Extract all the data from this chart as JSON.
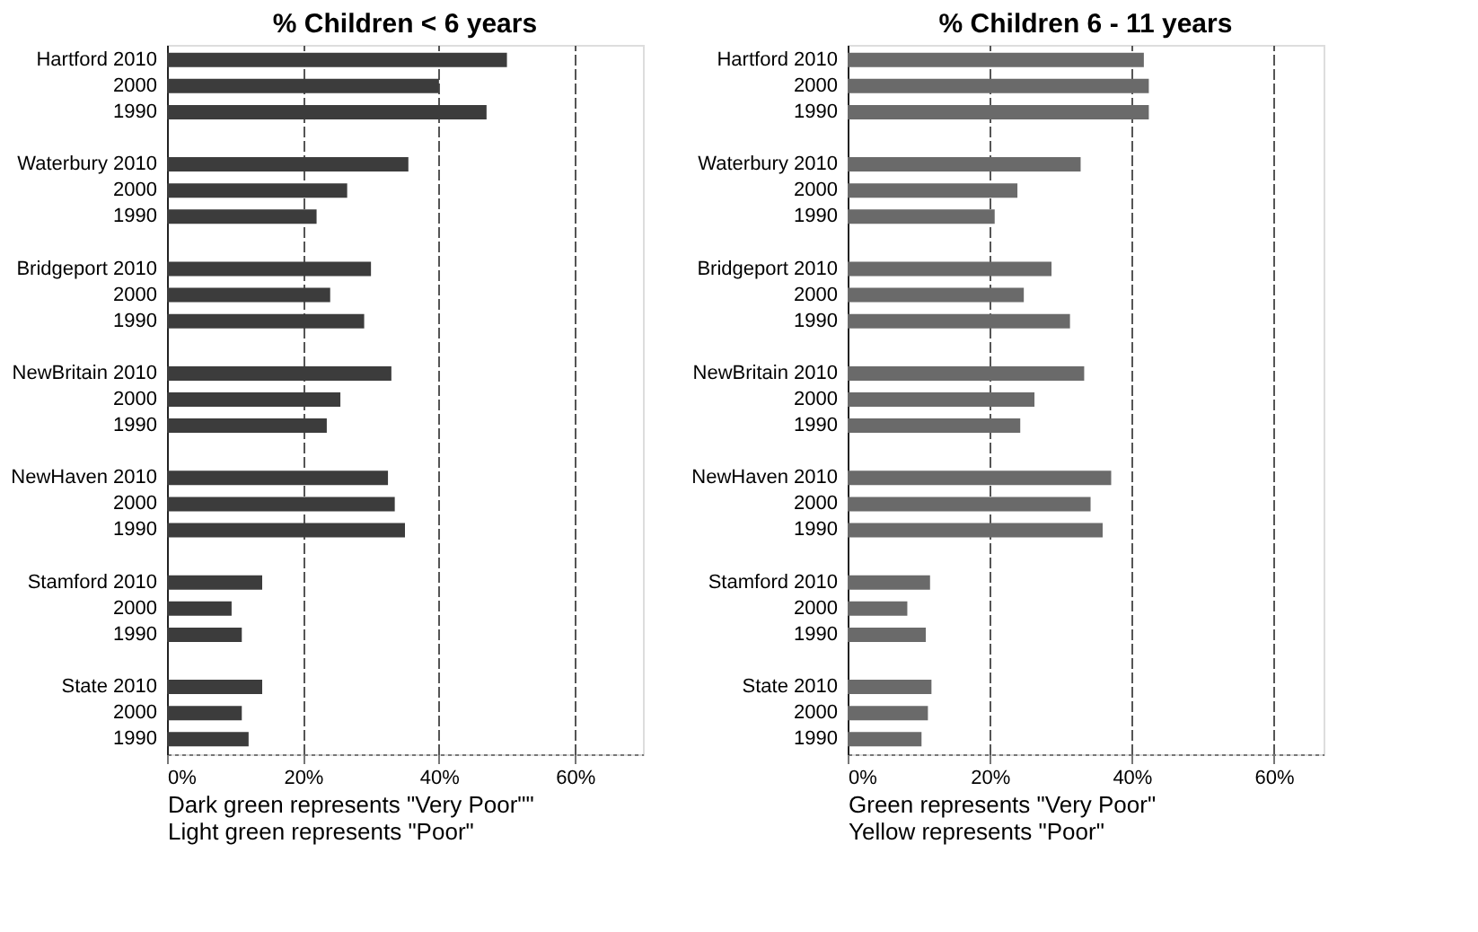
{
  "chart_data": [
    {
      "type": "bar",
      "orientation": "horizontal",
      "title": "% Children < 6 years",
      "categories": [
        "Hartford 2010",
        "2000",
        "1990",
        null,
        "Waterbury 2010",
        "2000",
        "1990",
        null,
        "Bridgeport 2010",
        "2000",
        "1990",
        null,
        "NewBritain 2010",
        "2000",
        "1990",
        null,
        "NewHaven 2010",
        "2000",
        "1990",
        null,
        "Stamford 2010",
        "2000",
        "1990",
        null,
        "State 2010",
        "2000",
        "1990"
      ],
      "values": [
        50,
        40,
        47,
        null,
        35.5,
        26.5,
        22,
        null,
        30,
        24,
        29,
        null,
        33,
        25.5,
        23.5,
        null,
        32.5,
        33.5,
        35,
        null,
        14,
        9.5,
        11,
        null,
        14,
        11,
        12
      ],
      "color": "#3c3c3c",
      "xlim": [
        0,
        70
      ],
      "xticks": [
        {
          "value": 0,
          "label": "0%"
        },
        {
          "value": 20,
          "label": "20%"
        },
        {
          "value": 40,
          "label": "40%"
        },
        {
          "value": 60,
          "label": "60%"
        }
      ],
      "grid": "x",
      "annotations": [
        "Dark  green represents \"Very Poor\"\"",
        "Light green  represents \"Poor\""
      ]
    },
    {
      "type": "bar",
      "orientation": "horizontal",
      "title": "% Children 6 - 11 years",
      "categories": [
        "Hartford 2010",
        "2000",
        "1990",
        null,
        "Waterbury 2010",
        "2000",
        "1990",
        null,
        "Bridgeport 2010",
        "2000",
        "1990",
        null,
        "NewBritain 2010",
        "2000",
        "1990",
        null,
        "NewHaven 2010",
        "2000",
        "1990",
        null,
        "Stamford 2010",
        "2000",
        "1990",
        null,
        "State 2010",
        "2000",
        "1990"
      ],
      "values": [
        41.7,
        42.4,
        42.4,
        null,
        32.8,
        23.9,
        20.7,
        null,
        28.7,
        24.8,
        31.3,
        null,
        33.3,
        26.3,
        24.3,
        null,
        37.1,
        34.2,
        35.9,
        null,
        11.6,
        8.4,
        11,
        null,
        11.8,
        11.3,
        10.4
      ],
      "color": "#6a6a6a",
      "xlim": [
        0,
        67
      ],
      "xticks": [
        {
          "value": 0,
          "label": "0%"
        },
        {
          "value": 20,
          "label": "20%"
        },
        {
          "value": 40,
          "label": "40%"
        },
        {
          "value": 60,
          "label": "60%"
        }
      ],
      "grid": "x",
      "annotations": [
        "Green represents \"Very Poor\"",
        "Yellow represents \"Poor\""
      ]
    }
  ]
}
